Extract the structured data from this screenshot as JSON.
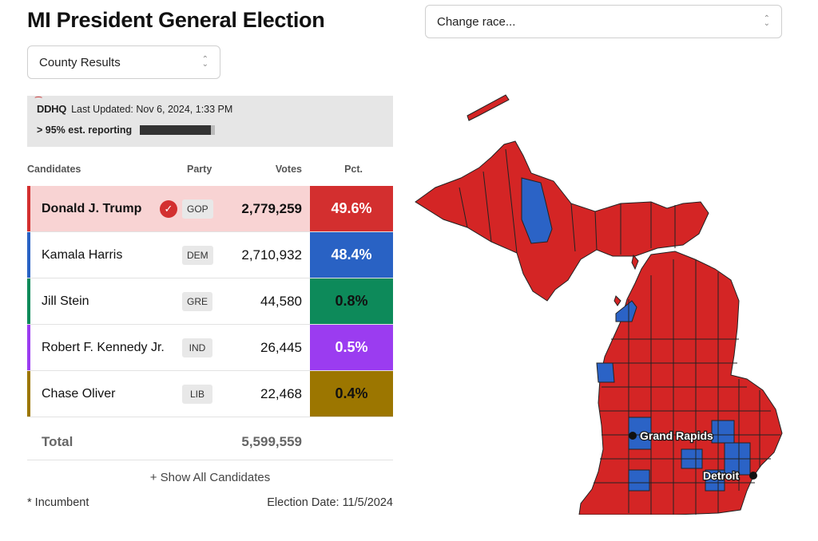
{
  "page": {
    "title": "MI President General Election"
  },
  "race_select": {
    "value": "Change race..."
  },
  "view_select": {
    "value": "County Results"
  },
  "status": {
    "source": "DDHQ",
    "last_updated": "Last Updated: Nov 6, 2024, 1:33 PM",
    "reporting": "> 95% est. reporting",
    "reporting_fraction": 0.95
  },
  "table": {
    "headers": {
      "candidates": "Candidates",
      "party": "Party",
      "votes": "Votes",
      "pct": "Pct."
    },
    "rows": [
      {
        "name": "Donald J. Trump",
        "party": "GOP",
        "votes": "2,779,259",
        "pct": "49.6%",
        "color": "#d32f2f",
        "pct_text_color": "#ffffff",
        "winner": true
      },
      {
        "name": "Kamala Harris",
        "party": "DEM",
        "votes": "2,710,932",
        "pct": "48.4%",
        "color": "#2962c4",
        "pct_text_color": "#ffffff",
        "winner": false
      },
      {
        "name": "Jill Stein",
        "party": "GRE",
        "votes": "44,580",
        "pct": "0.8%",
        "color": "#0d8a5a",
        "pct_text_color": "#111111",
        "winner": false
      },
      {
        "name": "Robert F. Kennedy Jr.",
        "party": "IND",
        "votes": "26,445",
        "pct": "0.5%",
        "color": "#9b3cf0",
        "pct_text_color": "#ffffff",
        "winner": false
      },
      {
        "name": "Chase Oliver",
        "party": "LIB",
        "votes": "22,468",
        "pct": "0.4%",
        "color": "#9c7600",
        "pct_text_color": "#111111",
        "winner": false
      }
    ],
    "total_label": "Total",
    "total_votes": "5,599,559"
  },
  "show_all": "+ Show All Candidates",
  "footer": {
    "incumbent_note": "* Incumbent",
    "election_date": "Election Date: 11/5/2024"
  },
  "map": {
    "cities": [
      {
        "name": "Grand Rapids"
      },
      {
        "name": "Detroit"
      }
    ],
    "colors": {
      "gop": "#d42525",
      "dem": "#2b63c6",
      "border": "#222222"
    }
  }
}
